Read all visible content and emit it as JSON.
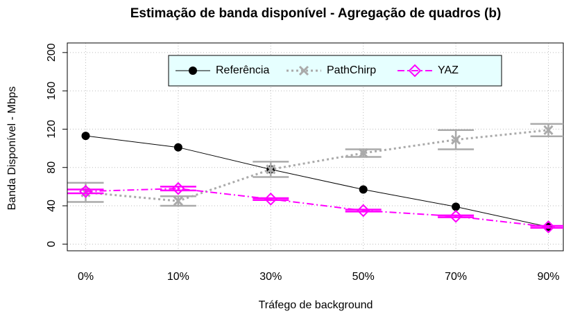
{
  "chart_data": {
    "type": "line",
    "title": "Estimação de banda disponível - Agregação de quadros (b)",
    "xlabel": "Tráfego de background",
    "ylabel": "Banda Disponível - Mbps",
    "categories": [
      "0%",
      "10%",
      "30%",
      "50%",
      "70%",
      "90%"
    ],
    "series": [
      {
        "name": "Referência",
        "color": "#000000",
        "marker": "dot",
        "dash": "solid",
        "values": [
          113,
          101,
          78,
          57,
          39,
          18
        ]
      },
      {
        "name": "PathChirp",
        "color": "#aaaaaa",
        "marker": "x",
        "dash": "dotted",
        "values": [
          54,
          45,
          78,
          95,
          109,
          119
        ],
        "errors": [
          10,
          5,
          8,
          4,
          10,
          6.5
        ]
      },
      {
        "name": "YAZ",
        "color": "#ff00ff",
        "marker": "diamond",
        "dash": "dashdot",
        "values": [
          55,
          58,
          47,
          35,
          29,
          18
        ],
        "errors": [
          2,
          2,
          1,
          1,
          1,
          1
        ]
      }
    ],
    "ylim": [
      -7,
      210
    ],
    "yticks": [
      0,
      40,
      80,
      120,
      160,
      200
    ],
    "grid": true,
    "legend": "top"
  }
}
